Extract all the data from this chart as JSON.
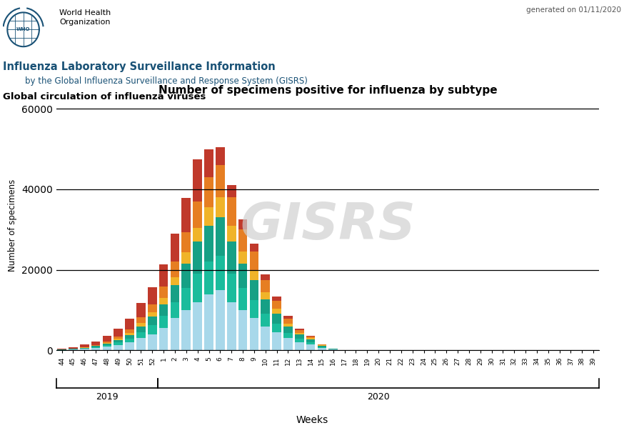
{
  "title": "Number of specimens positive for influenza by subtype",
  "ylabel": "Number of specimens",
  "xlabel": "Weeks",
  "header_line1": "Influenza Laboratory Surveillance Information",
  "header_line2": "by the Global Influenza Surveillance and Response System (GISRS)",
  "header_line3": "Global circulation of influenza viruses",
  "generated_text": "generated on 01/11/2020",
  "weeks": [
    "44",
    "45",
    "46",
    "47",
    "48",
    "49",
    "50",
    "51",
    "52",
    "1",
    "2",
    "3",
    "4",
    "5",
    "6",
    "7",
    "8",
    "9",
    "10",
    "11",
    "12",
    "13",
    "14",
    "15",
    "16",
    "17",
    "18",
    "19",
    "20",
    "21",
    "22",
    "23",
    "24",
    "25",
    "26",
    "27",
    "28",
    "29",
    "30",
    "31",
    "32",
    "33",
    "34",
    "35",
    "36",
    "37",
    "38",
    "39"
  ],
  "ylim": [
    0,
    62000
  ],
  "yticks": [
    0,
    20000,
    40000,
    60000
  ],
  "col_Bunlin": "#a8d8ea",
  "col_BYam": "#1abc9c",
  "col_BVic": "#16a085",
  "col_Aunsub": "#f0b429",
  "col_AH1N1": "#e67e22",
  "col_AH3": "#c0392b",
  "B_unlin": [
    100,
    200,
    350,
    600,
    900,
    1400,
    2000,
    3000,
    4000,
    5500,
    8000,
    10000,
    12000,
    14000,
    15000,
    12000,
    10000,
    8000,
    6000,
    4500,
    3000,
    2000,
    1500,
    600,
    200,
    60,
    20,
    5,
    0,
    0,
    0,
    0,
    0,
    0,
    0,
    0,
    0,
    0,
    0,
    0,
    0,
    0,
    0,
    0,
    0,
    0,
    0,
    0
  ],
  "B_Yamagata": [
    50,
    100,
    150,
    250,
    400,
    600,
    900,
    1500,
    2200,
    3000,
    4000,
    5500,
    7000,
    8000,
    8500,
    7000,
    5500,
    4500,
    3200,
    2200,
    1400,
    900,
    600,
    250,
    80,
    25,
    8,
    2,
    0,
    0,
    0,
    0,
    0,
    0,
    0,
    0,
    0,
    0,
    0,
    0,
    0,
    0,
    0,
    0,
    0,
    0,
    0,
    0
  ],
  "B_Victoria": [
    50,
    80,
    130,
    200,
    350,
    550,
    900,
    1500,
    2200,
    3000,
    4200,
    6000,
    8000,
    9000,
    9500,
    8000,
    6000,
    5000,
    3500,
    2500,
    1500,
    1000,
    700,
    300,
    100,
    30,
    10,
    3,
    0,
    0,
    0,
    0,
    0,
    0,
    0,
    0,
    0,
    0,
    0,
    0,
    0,
    0,
    0,
    0,
    0,
    0,
    0,
    0
  ],
  "A_unsub": [
    30,
    50,
    80,
    130,
    200,
    300,
    500,
    800,
    1100,
    1500,
    2000,
    2800,
    3500,
    4500,
    5000,
    4000,
    3000,
    2500,
    1700,
    1200,
    700,
    450,
    300,
    130,
    45,
    15,
    5,
    2,
    0,
    0,
    0,
    0,
    0,
    0,
    0,
    0,
    0,
    0,
    0,
    0,
    0,
    0,
    0,
    0,
    0,
    0,
    0,
    0
  ],
  "A_H1N1": [
    50,
    80,
    130,
    200,
    350,
    550,
    850,
    1400,
    2000,
    2800,
    3800,
    5000,
    6500,
    7500,
    8000,
    7000,
    5500,
    4500,
    3000,
    2000,
    1200,
    700,
    400,
    150,
    50,
    15,
    5,
    2,
    0,
    0,
    0,
    0,
    0,
    0,
    0,
    0,
    0,
    0,
    0,
    0,
    0,
    0,
    0,
    0,
    0,
    0,
    0,
    0
  ],
  "A_H3": [
    200,
    350,
    600,
    900,
    1400,
    2000,
    2800,
    3500,
    4200,
    5500,
    7000,
    8500,
    10500,
    7000,
    4500,
    3000,
    2500,
    2000,
    1500,
    1000,
    700,
    400,
    200,
    80,
    30,
    10,
    3,
    1,
    0,
    0,
    0,
    0,
    0,
    0,
    0,
    0,
    0,
    0,
    0,
    0,
    0,
    0,
    0,
    0,
    0,
    0,
    0,
    0
  ],
  "year2019_indices": [
    0,
    8
  ],
  "year2020_indices": [
    9,
    47
  ]
}
